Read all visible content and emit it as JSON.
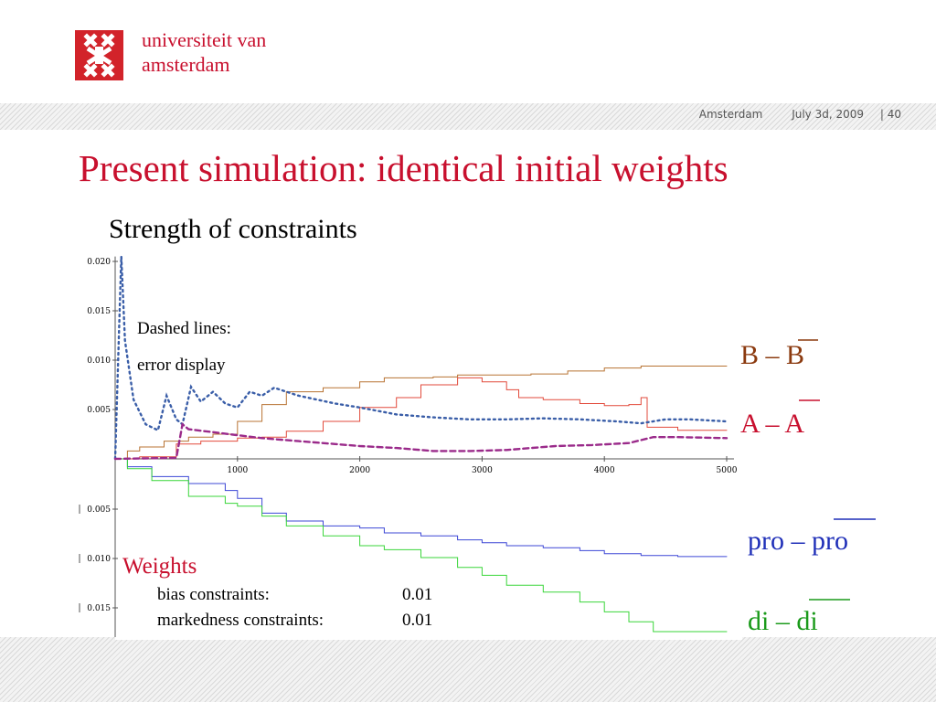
{
  "header": {
    "university_line1": "universiteit van",
    "university_line2": "amsterdam",
    "location": "Amsterdam",
    "date": "July 3d, 2009",
    "page": "| 40"
  },
  "slide": {
    "title": "Present simulation: identical initial weights",
    "subtitle": "Strength of constraints"
  },
  "colors": {
    "brand_red": "#c8102e",
    "B": "#b87333",
    "A": "#e24a3b",
    "pro": "#3d47d6",
    "di": "#3ad63a",
    "error_blue": "#3a5ea8",
    "error_purple": "#9a2a8a",
    "label_B": "#8b3a0f",
    "label_A": "#c8102e",
    "label_pro": "#1f2fb8",
    "label_di": "#1a9a1a"
  },
  "annotations": {
    "line1": "Dashed lines:",
    "line2": "error display"
  },
  "weights": {
    "title": "Weights",
    "rows": [
      {
        "label": "bias constraints:",
        "value": "0.01"
      },
      {
        "label": "markedness constraints:",
        "value": "0.01"
      }
    ]
  },
  "series_labels": {
    "B": {
      "pre": "B – ",
      "bar": "B"
    },
    "A": {
      "pre": "A – ",
      "bar": "A"
    },
    "pro": {
      "pre": "pro – ",
      "bar": "pro"
    },
    "di": {
      "pre": "di – ",
      "bar": "di"
    }
  },
  "chart_data": {
    "type": "line",
    "xlim": [
      0,
      5000
    ],
    "ylim": [
      -0.018,
      0.02
    ],
    "x_ticks": [
      1000,
      2000,
      3000,
      4000,
      5000
    ],
    "y_ticks_pos": [
      {
        "v": 0.02,
        "label": "0.020"
      },
      {
        "v": 0.015,
        "label": "0.015"
      },
      {
        "v": 0.01,
        "label": "0.010"
      },
      {
        "v": 0.005,
        "label": "0.005"
      }
    ],
    "y_ticks_neg": [
      {
        "v": -0.005,
        "label": "0.005"
      },
      {
        "v": -0.01,
        "label": "0.010"
      },
      {
        "v": -0.015,
        "label": "0.015"
      }
    ],
    "series": [
      {
        "key": "B",
        "style": "step",
        "x": [
          0,
          100,
          200,
          400,
          600,
          800,
          1000,
          1200,
          1400,
          1700,
          2000,
          2200,
          2600,
          2800,
          3100,
          3400,
          3700,
          4000,
          4300,
          4600,
          5000
        ],
        "y": [
          0.0,
          0.0008,
          0.0012,
          0.0018,
          0.0022,
          0.0025,
          0.0038,
          0.0055,
          0.0068,
          0.0072,
          0.0078,
          0.0082,
          0.0083,
          0.0085,
          0.0085,
          0.0086,
          0.0089,
          0.0092,
          0.0094,
          0.0094,
          0.0094
        ]
      },
      {
        "key": "A",
        "style": "step",
        "x": [
          0,
          200,
          500,
          700,
          1000,
          1200,
          1400,
          1700,
          2000,
          2300,
          2500,
          2800,
          3000,
          3200,
          3300,
          3500,
          3800,
          4000,
          4200,
          4300,
          4350,
          4600,
          5000
        ],
        "y": [
          0.0,
          0.0002,
          0.0015,
          0.0018,
          0.0021,
          0.0022,
          0.0028,
          0.0038,
          0.0052,
          0.0062,
          0.0075,
          0.0082,
          0.0078,
          0.007,
          0.0062,
          0.006,
          0.0056,
          0.0054,
          0.0055,
          0.0062,
          0.0032,
          0.0029,
          0.0029
        ]
      },
      {
        "key": "pro",
        "style": "step",
        "x": [
          0,
          100,
          300,
          600,
          900,
          1000,
          1200,
          1400,
          1700,
          2000,
          2200,
          2500,
          2800,
          3000,
          3200,
          3500,
          3800,
          4000,
          4300,
          4600,
          5000
        ],
        "y": [
          0.0,
          -0.0008,
          -0.0018,
          -0.0025,
          -0.0032,
          -0.004,
          -0.0055,
          -0.0063,
          -0.0068,
          -0.007,
          -0.0075,
          -0.0078,
          -0.0082,
          -0.0085,
          -0.0088,
          -0.009,
          -0.0093,
          -0.0096,
          -0.0098,
          -0.0099,
          -0.0099
        ]
      },
      {
        "key": "di",
        "style": "step",
        "x": [
          0,
          100,
          300,
          600,
          900,
          1000,
          1200,
          1400,
          1700,
          2000,
          2200,
          2500,
          2800,
          3000,
          3200,
          3500,
          3800,
          4000,
          4200,
          4400,
          4600,
          5000
        ],
        "y": [
          0.0,
          -0.001,
          -0.0022,
          -0.0038,
          -0.0045,
          -0.0048,
          -0.0058,
          -0.0068,
          -0.0078,
          -0.0088,
          -0.0092,
          -0.01,
          -0.011,
          -0.0118,
          -0.0128,
          -0.0135,
          -0.0145,
          -0.0155,
          -0.0165,
          -0.0175,
          -0.0175,
          -0.0175
        ]
      },
      {
        "key": "error_blue",
        "style": "dotted",
        "x": [
          0,
          50,
          80,
          150,
          250,
          350,
          420,
          500,
          550,
          620,
          700,
          800,
          900,
          1000,
          1100,
          1200,
          1300,
          1500,
          1800,
          2000,
          2300,
          2600,
          2900,
          3200,
          3500,
          3800,
          4100,
          4300,
          4500,
          4700,
          5000
        ],
        "y": [
          0.0,
          0.0205,
          0.012,
          0.006,
          0.0035,
          0.0029,
          0.0064,
          0.004,
          0.0035,
          0.0073,
          0.0058,
          0.0068,
          0.0056,
          0.0052,
          0.0068,
          0.0064,
          0.0072,
          0.0064,
          0.0056,
          0.0052,
          0.0045,
          0.0042,
          0.004,
          0.004,
          0.0041,
          0.004,
          0.0038,
          0.0036,
          0.004,
          0.004,
          0.0038
        ]
      },
      {
        "key": "error_purple",
        "style": "dashed",
        "x": [
          0,
          500,
          550,
          600,
          800,
          1000,
          1200,
          1500,
          1800,
          2000,
          2300,
          2600,
          2900,
          3200,
          3400,
          3600,
          3900,
          4200,
          4400,
          4600,
          5000
        ],
        "y": [
          0.0,
          0.0001,
          0.0035,
          0.003,
          0.0027,
          0.0024,
          0.0021,
          0.0018,
          0.0015,
          0.0013,
          0.0011,
          0.0008,
          0.0008,
          0.0009,
          0.0011,
          0.0013,
          0.0014,
          0.0016,
          0.0022,
          0.0022,
          0.0021
        ]
      }
    ]
  }
}
